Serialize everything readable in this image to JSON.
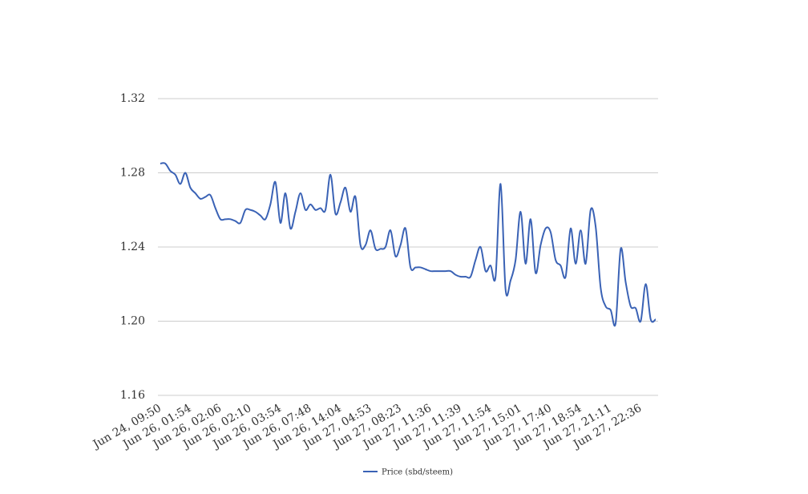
{
  "chart_data": {
    "type": "line",
    "categories": [
      "Jun 24, 09:50",
      null,
      null,
      null,
      null,
      null,
      "Jun 26, 01:54",
      null,
      null,
      null,
      null,
      null,
      "Jun 26, 02:06",
      null,
      null,
      null,
      null,
      null,
      "Jun 26, 02:10",
      null,
      null,
      null,
      null,
      null,
      "Jun 26, 03:54",
      null,
      null,
      null,
      null,
      null,
      "Jun 26, 07:48",
      null,
      null,
      null,
      null,
      null,
      "Jun 26, 14:04",
      null,
      null,
      null,
      null,
      null,
      "Jun 27, 04:53",
      null,
      null,
      null,
      null,
      null,
      "Jun 27, 08:23",
      null,
      null,
      null,
      null,
      null,
      "Jun 27, 11:36",
      null,
      null,
      null,
      null,
      null,
      "Jun 27, 11:39",
      null,
      null,
      null,
      null,
      null,
      "Jun 27, 11:54",
      null,
      null,
      null,
      null,
      null,
      "Jun 27, 15:01",
      null,
      null,
      null,
      null,
      null,
      "Jun 27, 17:40",
      null,
      null,
      null,
      null,
      null,
      "Jun 27, 18:54",
      null,
      null,
      null,
      null,
      null,
      "Jun 27, 21:11",
      null,
      null,
      null,
      null,
      null,
      "Jun 27, 22:36",
      null,
      null,
      null
    ],
    "series": [
      {
        "name": "Price (sbd/steem)",
        "color": "#3a62b5",
        "values": [
          1.285,
          1.285,
          1.281,
          1.279,
          1.274,
          1.28,
          1.272,
          1.269,
          1.266,
          1.267,
          1.268,
          1.261,
          1.255,
          1.255,
          1.255,
          1.254,
          1.253,
          1.26,
          1.26,
          1.259,
          1.257,
          1.255,
          1.263,
          1.275,
          1.253,
          1.269,
          1.25,
          1.259,
          1.269,
          1.26,
          1.263,
          1.26,
          1.261,
          1.26,
          1.279,
          1.258,
          1.264,
          1.272,
          1.259,
          1.267,
          1.241,
          1.241,
          1.249,
          1.239,
          1.239,
          1.24,
          1.249,
          1.235,
          1.241,
          1.25,
          1.229,
          1.229,
          1.229,
          1.228,
          1.227,
          1.227,
          1.227,
          1.227,
          1.227,
          1.225,
          1.224,
          1.224,
          1.224,
          1.233,
          1.24,
          1.227,
          1.23,
          1.224,
          1.274,
          1.217,
          1.222,
          1.233,
          1.259,
          1.231,
          1.255,
          1.226,
          1.241,
          1.25,
          1.248,
          1.233,
          1.23,
          1.224,
          1.25,
          1.231,
          1.249,
          1.231,
          1.26,
          1.251,
          1.218,
          1.208,
          1.206,
          1.199,
          1.239,
          1.221,
          1.208,
          1.207,
          1.2,
          1.22,
          1.201,
          1.201
        ]
      }
    ],
    "ylim": [
      1.16,
      1.32
    ],
    "yticks": [
      1.16,
      {
        "value": 1.2,
        "label": "1.20"
      },
      1.24,
      1.28,
      1.32
    ],
    "grid": true,
    "legend": "bottom"
  }
}
